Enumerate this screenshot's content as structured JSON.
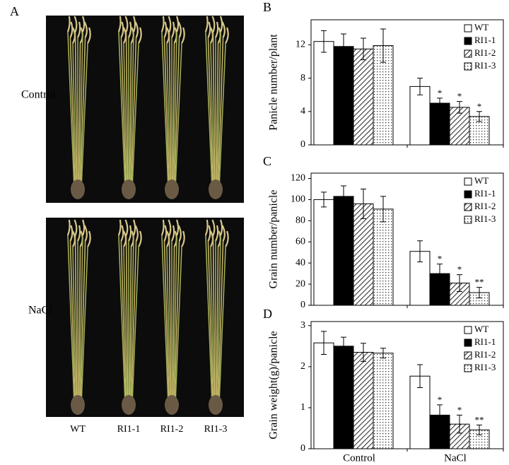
{
  "panel_a": {
    "label": "A",
    "rows": [
      "Control",
      "NaCl"
    ],
    "columns": [
      "WT",
      "RI1-1",
      "RI1-2",
      "RI1-3"
    ]
  },
  "chart_data": [
    {
      "type": "bar",
      "panel_label": "B",
      "y_label": "Panicle number/plant",
      "categories": [
        null,
        null
      ],
      "ylim": [
        0,
        15
      ],
      "yticks": [
        0,
        4,
        8,
        12
      ],
      "legend": "top-right",
      "series": [
        {
          "name": "WT",
          "color": "#ffffff",
          "pattern": "solid",
          "values": [
            12.4,
            7.0
          ],
          "errors": [
            1.3,
            1.0
          ],
          "annotations": [
            null,
            null
          ]
        },
        {
          "name": "RI1-1",
          "color": "#000000",
          "pattern": "solid",
          "values": [
            11.8,
            5.0
          ],
          "errors": [
            1.5,
            0.6
          ],
          "annotations": [
            null,
            "*"
          ]
        },
        {
          "name": "RI1-2",
          "color": "#888888",
          "pattern": "hatch",
          "values": [
            11.5,
            4.5
          ],
          "errors": [
            1.3,
            0.7
          ],
          "annotations": [
            null,
            "*"
          ]
        },
        {
          "name": "RI1-3",
          "color": "#888888",
          "pattern": "dots",
          "values": [
            11.9,
            3.4
          ],
          "errors": [
            2.0,
            0.6
          ],
          "annotations": [
            null,
            "*"
          ]
        }
      ]
    },
    {
      "type": "bar",
      "panel_label": "C",
      "y_label": "Grain number/panicle",
      "categories": [
        null,
        null
      ],
      "ylim": [
        0,
        125
      ],
      "yticks": [
        0,
        20,
        40,
        60,
        80,
        100,
        120
      ],
      "legend": "top-right",
      "series": [
        {
          "name": "WT",
          "color": "#ffffff",
          "pattern": "solid",
          "values": [
            100,
            51
          ],
          "errors": [
            7,
            10
          ],
          "annotations": [
            null,
            null
          ]
        },
        {
          "name": "RI1-1",
          "color": "#000000",
          "pattern": "solid",
          "values": [
            103,
            30
          ],
          "errors": [
            10,
            9
          ],
          "annotations": [
            null,
            "*"
          ]
        },
        {
          "name": "RI1-2",
          "color": "#888888",
          "pattern": "hatch",
          "values": [
            96,
            21
          ],
          "errors": [
            14,
            8
          ],
          "annotations": [
            null,
            "*"
          ]
        },
        {
          "name": "RI1-3",
          "color": "#888888",
          "pattern": "dots",
          "values": [
            91,
            12
          ],
          "errors": [
            12,
            5
          ],
          "annotations": [
            null,
            "**"
          ]
        }
      ]
    },
    {
      "type": "bar",
      "panel_label": "D",
      "y_label": "Grain weight(g)/panicle",
      "categories": [
        "Control",
        "NaCl"
      ],
      "ylim": [
        0,
        3.1
      ],
      "yticks": [
        0,
        1,
        2,
        3
      ],
      "legend": "top-right",
      "series": [
        {
          "name": "WT",
          "color": "#ffffff",
          "pattern": "solid",
          "values": [
            2.58,
            1.77
          ],
          "errors": [
            0.28,
            0.28
          ],
          "annotations": [
            null,
            null
          ]
        },
        {
          "name": "RI1-1",
          "color": "#000000",
          "pattern": "solid",
          "values": [
            2.5,
            0.82
          ],
          "errors": [
            0.22,
            0.25
          ],
          "annotations": [
            null,
            "*"
          ]
        },
        {
          "name": "RI1-2",
          "color": "#888888",
          "pattern": "hatch",
          "values": [
            2.35,
            0.6
          ],
          "errors": [
            0.22,
            0.22
          ],
          "annotations": [
            null,
            "*"
          ]
        },
        {
          "name": "RI1-3",
          "color": "#888888",
          "pattern": "dots",
          "values": [
            2.33,
            0.46
          ],
          "errors": [
            0.12,
            0.12
          ],
          "annotations": [
            null,
            "**"
          ]
        }
      ]
    }
  ]
}
